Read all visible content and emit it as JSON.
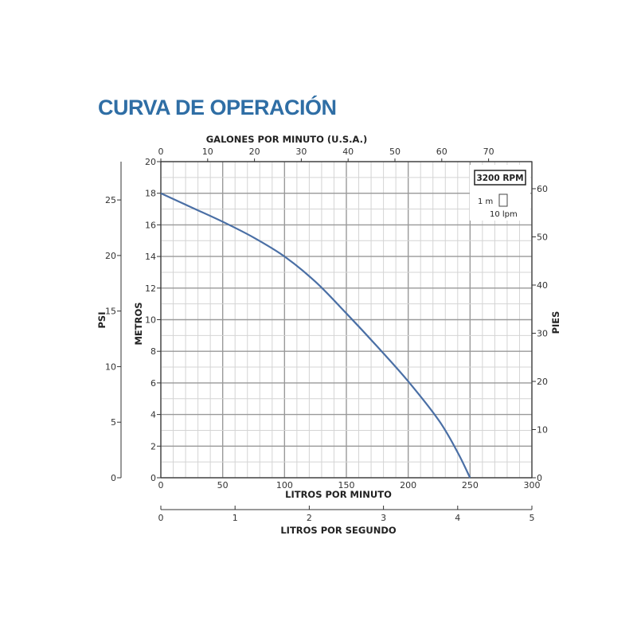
{
  "chart_data": {
    "type": "line",
    "title": "CURVA DE OPERACIÓN",
    "xlabel": "LITROS POR MINUTO",
    "ylabel": "METROS",
    "xlim": [
      0,
      300
    ],
    "ylim": [
      0,
      20
    ],
    "x_ticks": [
      0,
      50,
      100,
      150,
      200,
      250,
      300
    ],
    "y_ticks": [
      0,
      2,
      4,
      6,
      8,
      10,
      12,
      14,
      16,
      18,
      20
    ],
    "grid": true,
    "series": [
      {
        "x": [
          0,
          25,
          50,
          75,
          100,
          125,
          150,
          175,
          200,
          225,
          240,
          250
        ],
        "y": [
          18,
          17.1,
          16.2,
          15.2,
          14,
          12.4,
          10.4,
          8.3,
          6.1,
          3.6,
          1.6,
          0
        ],
        "color": "#4a6fa5"
      }
    ],
    "top_axis": {
      "label": "GALONES POR MINUTO (U.S.A.)",
      "ticks": [
        0,
        10,
        20,
        30,
        40,
        50,
        60,
        70
      ]
    },
    "left_axis": {
      "label": "PSI",
      "ticks": [
        0,
        5,
        10,
        15,
        20,
        25
      ]
    },
    "right_axis": {
      "label": "PIES",
      "ticks": [
        0,
        10,
        20,
        30,
        40,
        50,
        60
      ]
    },
    "bottom_axis": {
      "label": "LITROS POR SEGUNDO",
      "ticks": [
        0,
        1,
        2,
        3,
        4,
        5
      ]
    },
    "legend": {
      "rpm": "3200 RPM",
      "scale_v": "1 m",
      "scale_h": "10 lpm",
      "placement": "top-right"
    }
  },
  "colors": {
    "title": "#2f6ea5",
    "curve": "#4a6fa5"
  }
}
